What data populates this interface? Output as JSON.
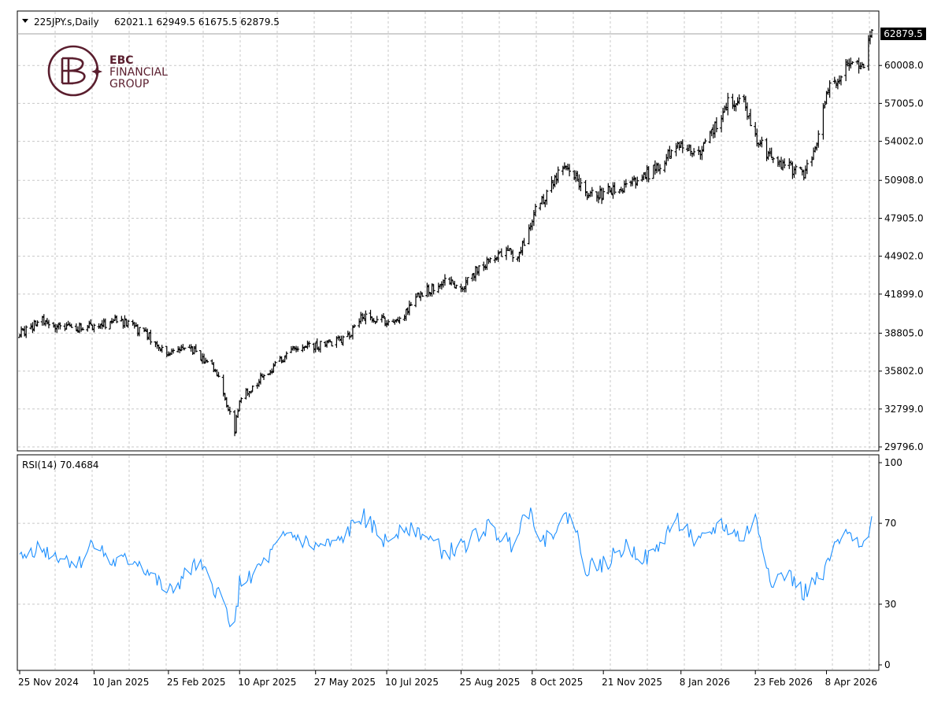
{
  "header": {
    "symbol_label": "225JPY.s,Daily",
    "ohlc": "62021.1 62949.5 61675.5 62879.5"
  },
  "logo": {
    "line1": "EBC",
    "line2": "FINANCIAL",
    "line3": "GROUP",
    "color": "#5a1e2e"
  },
  "colors": {
    "bars": "#000000",
    "rsi_line": "#1e90ff",
    "grid": "#c8c8c8",
    "frame": "#000000",
    "price_tag_bg": "#000000",
    "price_tag_text": "#ffffff"
  },
  "chart_data": [
    {
      "type": "ohlc",
      "title": "225JPY.s,Daily",
      "last_price": "62879.5",
      "y_ticks": [
        "29796.0",
        "32799.0",
        "35802.0",
        "38805.0",
        "41899.0",
        "44902.0",
        "47905.0",
        "50908.0",
        "54002.0",
        "57005.0",
        "60008.0"
      ],
      "ylim": [
        29796,
        62949.5
      ],
      "x_ticks": [
        "25 Nov 2024",
        "10 Jan 2025",
        "25 Feb 2025",
        "10 Apr 2025",
        "27 May 2025",
        "10 Jul 2025",
        "25 Aug 2025",
        "8 Oct 2025",
        "21 Nov 2025",
        "8 Jan 2026",
        "23 Feb 2026",
        "8 Apr 2026"
      ],
      "grid": true,
      "anchors": [
        [
          "25 Nov 2024",
          38800
        ],
        [
          "10 Dec 2024",
          39800
        ],
        [
          "20 Dec 2024",
          39200
        ],
        [
          "10 Jan 2025",
          39300
        ],
        [
          "25 Jan 2025",
          39800
        ],
        [
          "10 Feb 2025",
          38900
        ],
        [
          "25 Feb 2025",
          37000
        ],
        [
          "5 Mar 2025",
          37600
        ],
        [
          "15 Mar 2025",
          37300
        ],
        [
          "28 Mar 2025",
          35500
        ],
        [
          "4 Apr 2025",
          32500
        ],
        [
          "7 Apr 2025",
          31100
        ],
        [
          "10 Apr 2025",
          33500
        ],
        [
          "25 Apr 2025",
          35500
        ],
        [
          "15 May 2025",
          37800
        ],
        [
          "27 May 2025",
          37800
        ],
        [
          "15 Jun 2025",
          38300
        ],
        [
          "25 Jun 2025",
          40200
        ],
        [
          "10 Jul 2025",
          39800
        ],
        [
          "20 Jul 2025",
          40200
        ],
        [
          "1 Aug 2025",
          42000
        ],
        [
          "15 Aug 2025",
          42800
        ],
        [
          "25 Aug 2025",
          42500
        ],
        [
          "5 Sep 2025",
          44000
        ],
        [
          "20 Sep 2025",
          45200
        ],
        [
          "30 Sep 2025",
          45000
        ],
        [
          "8 Oct 2025",
          48000
        ],
        [
          "15 Oct 2025",
          49500
        ],
        [
          "25 Oct 2025",
          51500
        ],
        [
          "1 Nov 2025",
          51800
        ],
        [
          "10 Nov 2025",
          50000
        ],
        [
          "21 Nov 2025",
          49800
        ],
        [
          "5 Dec 2025",
          50500
        ],
        [
          "20 Dec 2025",
          51500
        ],
        [
          "8 Jan 2026",
          53800
        ],
        [
          "20 Jan 2026",
          53000
        ],
        [
          "25 Jan 2026",
          54000
        ],
        [
          "5 Feb 2026",
          57000
        ],
        [
          "15 Feb 2026",
          57500
        ],
        [
          "23 Feb 2026",
          54500
        ],
        [
          "5 Mar 2026",
          52500
        ],
        [
          "15 Mar 2026",
          52000
        ],
        [
          "25 Mar 2026",
          51500
        ],
        [
          "1 Apr 2026",
          53000
        ],
        [
          "8 Apr 2026",
          58000
        ],
        [
          "20 Apr 2026",
          59800
        ],
        [
          "1 May 2026",
          60000
        ],
        [
          "6 May 2026",
          62879.5
        ]
      ]
    },
    {
      "type": "line",
      "title": "RSI(14) 70.4684",
      "series_name": "RSI(14)",
      "last_value": "70.4684",
      "y_ticks": [
        "0",
        "30",
        "70",
        "100"
      ],
      "ylim": [
        0,
        100
      ],
      "grid": true,
      "anchors": [
        [
          "25 Nov 2024",
          52
        ],
        [
          "5 Dec 2024",
          58
        ],
        [
          "15 Dec 2024",
          55
        ],
        [
          "1 Jan 2025",
          50
        ],
        [
          "10 Jan 2025",
          62
        ],
        [
          "20 Jan 2025",
          50
        ],
        [
          "5 Feb 2025",
          52
        ],
        [
          "25 Feb 2025",
          35
        ],
        [
          "5 Mar 2025",
          42
        ],
        [
          "15 Mar 2025",
          50
        ],
        [
          "28 Mar 2025",
          35
        ],
        [
          "7 Apr 2025",
          18
        ],
        [
          "10 Apr 2025",
          40
        ],
        [
          "25 Apr 2025",
          50
        ],
        [
          "10 May 2025",
          65
        ],
        [
          "27 May 2025",
          58
        ],
        [
          "10 Jun 2025",
          60
        ],
        [
          "25 Jun 2025",
          74
        ],
        [
          "10 Jul 2025",
          60
        ],
        [
          "20 Jul 2025",
          70
        ],
        [
          "1 Aug 2025",
          65
        ],
        [
          "15 Aug 2025",
          55
        ],
        [
          "25 Aug 2025",
          58
        ],
        [
          "10 Sep 2025",
          68
        ],
        [
          "25 Sep 2025",
          60
        ],
        [
          "5 Oct 2025",
          78
        ],
        [
          "15 Oct 2025",
          62
        ],
        [
          "1 Nov 2025",
          75
        ],
        [
          "10 Nov 2025",
          48
        ],
        [
          "21 Nov 2025",
          50
        ],
        [
          "5 Dec 2025",
          58
        ],
        [
          "20 Dec 2025",
          52
        ],
        [
          "5 Jan 2026",
          72
        ],
        [
          "20 Jan 2026",
          60
        ],
        [
          "1 Feb 2026",
          70
        ],
        [
          "15 Feb 2026",
          62
        ],
        [
          "23 Feb 2026",
          72
        ],
        [
          "5 Mar 2026",
          42
        ],
        [
          "15 Mar 2026",
          45
        ],
        [
          "25 Mar 2026",
          35
        ],
        [
          "5 Apr 2026",
          45
        ],
        [
          "15 Apr 2026",
          60
        ],
        [
          "25 Apr 2026",
          65
        ],
        [
          "1 May 2026",
          60
        ],
        [
          "6 May 2026",
          70.4684
        ]
      ]
    }
  ]
}
